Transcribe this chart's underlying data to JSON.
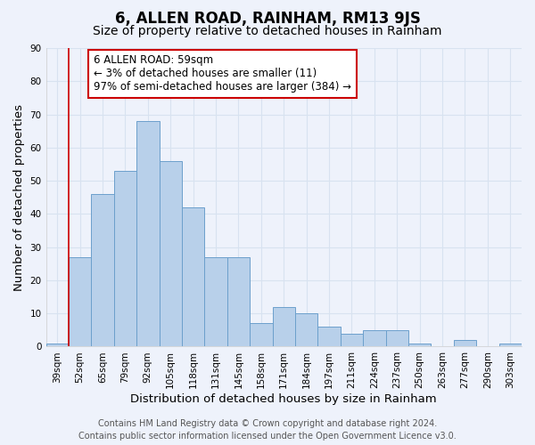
{
  "title": "6, ALLEN ROAD, RAINHAM, RM13 9JS",
  "subtitle": "Size of property relative to detached houses in Rainham",
  "xlabel": "Distribution of detached houses by size in Rainham",
  "ylabel": "Number of detached properties",
  "categories": [
    "39sqm",
    "52sqm",
    "65sqm",
    "79sqm",
    "92sqm",
    "105sqm",
    "118sqm",
    "131sqm",
    "145sqm",
    "158sqm",
    "171sqm",
    "184sqm",
    "197sqm",
    "211sqm",
    "224sqm",
    "237sqm",
    "250sqm",
    "263sqm",
    "277sqm",
    "290sqm",
    "303sqm"
  ],
  "values": [
    1,
    27,
    46,
    53,
    68,
    56,
    42,
    27,
    27,
    7,
    12,
    10,
    6,
    4,
    5,
    5,
    1,
    0,
    2,
    0,
    1
  ],
  "bar_color": "#b8d0ea",
  "bar_edge_color": "#6ca0cc",
  "ylim": [
    0,
    90
  ],
  "yticks": [
    0,
    10,
    20,
    30,
    40,
    50,
    60,
    70,
    80,
    90
  ],
  "marker_label": "6 ALLEN ROAD: 59sqm",
  "annotation_line1": "← 3% of detached houses are smaller (11)",
  "annotation_line2": "97% of semi-detached houses are larger (384) →",
  "annotation_box_color": "#ffffff",
  "annotation_box_edge_color": "#cc0000",
  "vline_color": "#cc0000",
  "vline_x": 1.5,
  "footer_line1": "Contains HM Land Registry data © Crown copyright and database right 2024.",
  "footer_line2": "Contains public sector information licensed under the Open Government Licence v3.0.",
  "background_color": "#eef2fb",
  "grid_color": "#d8e2f0",
  "title_fontsize": 12,
  "subtitle_fontsize": 10,
  "axis_label_fontsize": 9.5,
  "tick_fontsize": 7.5,
  "annotation_fontsize": 8.5,
  "footer_fontsize": 7
}
